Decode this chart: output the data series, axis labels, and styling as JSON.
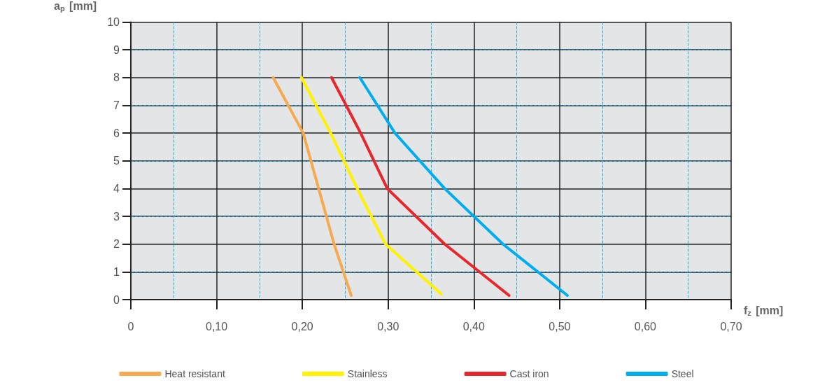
{
  "chart_data": {
    "type": "line",
    "xlabel": "f$_{z}$ [mm]",
    "ylabel": "a$_{p}$ [mm]",
    "series": [
      {
        "name": "Heat resistant",
        "color": "#f7a94f",
        "x": [
          0.166,
          0.201,
          0.219,
          0.237,
          0.257
        ],
        "values": [
          8,
          6,
          4,
          2,
          0.15
        ]
      },
      {
        "name": "Stainless",
        "color": "#fff200",
        "x": [
          0.199,
          0.233,
          0.264,
          0.297,
          0.362
        ],
        "values": [
          8,
          6,
          4,
          2,
          0.2
        ]
      },
      {
        "name": "Cast iron",
        "color": "#e8262b",
        "x": [
          0.234,
          0.268,
          0.299,
          0.366,
          0.441
        ],
        "values": [
          8,
          6,
          4,
          2,
          0.15
        ]
      },
      {
        "name": "Steel",
        "color": "#00aeef",
        "x": [
          0.267,
          0.308,
          0.366,
          0.434,
          0.509
        ],
        "values": [
          8,
          6,
          4,
          2,
          0.15
        ]
      }
    ],
    "xlim": [
      0,
      0.7
    ],
    "xticks": [
      0,
      {
        "value": 0.1,
        "label": "0,10"
      },
      {
        "value": 0.2,
        "label": "0,20"
      },
      {
        "value": 0.3,
        "label": "0,30"
      },
      {
        "value": 0.4,
        "label": "0,40"
      },
      {
        "value": 0.5,
        "label": "0,50"
      },
      {
        "value": 0.6,
        "label": "0,60"
      },
      {
        "value": 0.7,
        "label": "0,70"
      }
    ],
    "ylim": [
      0,
      10
    ],
    "yticks": [
      0,
      1,
      2,
      3,
      4,
      5,
      6,
      7,
      8,
      9,
      10
    ],
    "grid": true,
    "legend": "bottom",
    "marker": "none",
    "line_style": "solid"
  }
}
